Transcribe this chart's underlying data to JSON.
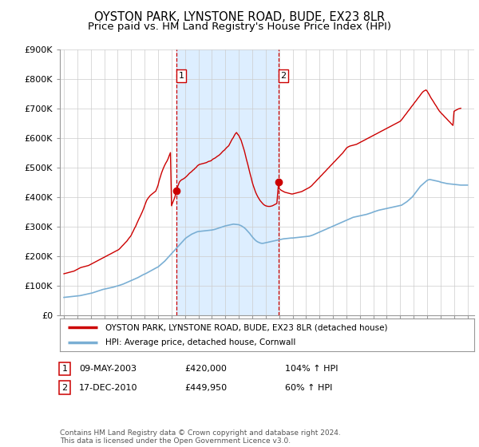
{
  "title": "OYSTON PARK, LYNSTONE ROAD, BUDE, EX23 8LR",
  "subtitle": "Price paid vs. HM Land Registry's House Price Index (HPI)",
  "title_fontsize": 10.5,
  "subtitle_fontsize": 9.5,
  "ylabel_ticks": [
    "£0",
    "£100K",
    "£200K",
    "£300K",
    "£400K",
    "£500K",
    "£600K",
    "£700K",
    "£800K",
    "£900K"
  ],
  "ytick_values": [
    0,
    100000,
    200000,
    300000,
    400000,
    500000,
    600000,
    700000,
    800000,
    900000
  ],
  "ylim": [
    0,
    900000
  ],
  "background_color": "#ffffff",
  "plot_bg_color": "#ffffff",
  "shade_color": "#ddeeff",
  "grid_color": "#cccccc",
  "sale1_x": 2003.36,
  "sale1_price": 420000,
  "sale1_label": "1",
  "sale2_x": 2010.96,
  "sale2_price": 449950,
  "sale2_label": "2",
  "vline_color": "#cc0000",
  "marker_color": "#cc0000",
  "hpi_line_color": "#7aafd4",
  "price_line_color": "#cc0000",
  "legend_label_price": "OYSTON PARK, LYNSTONE ROAD, BUDE, EX23 8LR (detached house)",
  "legend_label_hpi": "HPI: Average price, detached house, Cornwall",
  "footer_text": "Contains HM Land Registry data © Crown copyright and database right 2024.\nThis data is licensed under the Open Government Licence v3.0.",
  "table_rows": [
    {
      "num": "1",
      "date": "09-MAY-2003",
      "price": "£420,000",
      "hpi": "104% ↑ HPI"
    },
    {
      "num": "2",
      "date": "17-DEC-2010",
      "price": "£449,950",
      "hpi": "60% ↑ HPI"
    }
  ],
  "xmin": 1994.7,
  "xmax": 2025.5,
  "hpi_x": [
    1995.0,
    1995.1,
    1995.2,
    1995.3,
    1995.4,
    1995.5,
    1995.6,
    1995.7,
    1995.8,
    1995.9,
    1996.0,
    1996.1,
    1996.2,
    1996.3,
    1996.4,
    1996.5,
    1996.6,
    1996.7,
    1996.8,
    1996.9,
    1997.0,
    1997.1,
    1997.2,
    1997.3,
    1997.4,
    1997.5,
    1997.6,
    1997.7,
    1997.8,
    1997.9,
    1998.0,
    1998.1,
    1998.2,
    1998.3,
    1998.4,
    1998.5,
    1998.6,
    1998.7,
    1998.8,
    1998.9,
    1999.0,
    1999.1,
    1999.2,
    1999.3,
    1999.4,
    1999.5,
    1999.6,
    1999.7,
    1999.8,
    1999.9,
    2000.0,
    2000.1,
    2000.2,
    2000.3,
    2000.4,
    2000.5,
    2000.6,
    2000.7,
    2000.8,
    2000.9,
    2001.0,
    2001.1,
    2001.2,
    2001.3,
    2001.4,
    2001.5,
    2001.6,
    2001.7,
    2001.8,
    2001.9,
    2002.0,
    2002.1,
    2002.2,
    2002.3,
    2002.4,
    2002.5,
    2002.6,
    2002.7,
    2002.8,
    2002.9,
    2003.0,
    2003.1,
    2003.2,
    2003.3,
    2003.4,
    2003.5,
    2003.6,
    2003.7,
    2003.8,
    2003.9,
    2004.0,
    2004.1,
    2004.2,
    2004.3,
    2004.4,
    2004.5,
    2004.6,
    2004.7,
    2004.8,
    2004.9,
    2005.0,
    2005.1,
    2005.2,
    2005.3,
    2005.4,
    2005.5,
    2005.6,
    2005.7,
    2005.8,
    2005.9,
    2006.0,
    2006.1,
    2006.2,
    2006.3,
    2006.4,
    2006.5,
    2006.6,
    2006.7,
    2006.8,
    2006.9,
    2007.0,
    2007.1,
    2007.2,
    2007.3,
    2007.4,
    2007.5,
    2007.6,
    2007.7,
    2007.8,
    2007.9,
    2008.0,
    2008.1,
    2008.2,
    2008.3,
    2008.4,
    2008.5,
    2008.6,
    2008.7,
    2008.8,
    2008.9,
    2009.0,
    2009.1,
    2009.2,
    2009.3,
    2009.4,
    2009.5,
    2009.6,
    2009.7,
    2009.8,
    2009.9,
    2010.0,
    2010.1,
    2010.2,
    2010.3,
    2010.4,
    2010.5,
    2010.6,
    2010.7,
    2010.8,
    2010.9,
    2011.0,
    2011.1,
    2011.2,
    2011.3,
    2011.4,
    2011.5,
    2011.6,
    2011.7,
    2011.8,
    2011.9,
    2012.0,
    2012.1,
    2012.2,
    2012.3,
    2012.4,
    2012.5,
    2012.6,
    2012.7,
    2012.8,
    2012.9,
    2013.0,
    2013.1,
    2013.2,
    2013.3,
    2013.4,
    2013.5,
    2013.6,
    2013.7,
    2013.8,
    2013.9,
    2014.0,
    2014.1,
    2014.2,
    2014.3,
    2014.4,
    2014.5,
    2014.6,
    2014.7,
    2014.8,
    2014.9,
    2015.0,
    2015.1,
    2015.2,
    2015.3,
    2015.4,
    2015.5,
    2015.6,
    2015.7,
    2015.8,
    2015.9,
    2016.0,
    2016.1,
    2016.2,
    2016.3,
    2016.4,
    2016.5,
    2016.6,
    2016.7,
    2016.8,
    2016.9,
    2017.0,
    2017.1,
    2017.2,
    2017.3,
    2017.4,
    2017.5,
    2017.6,
    2017.7,
    2017.8,
    2017.9,
    2018.0,
    2018.1,
    2018.2,
    2018.3,
    2018.4,
    2018.5,
    2018.6,
    2018.7,
    2018.8,
    2018.9,
    2019.0,
    2019.1,
    2019.2,
    2019.3,
    2019.4,
    2019.5,
    2019.6,
    2019.7,
    2019.8,
    2019.9,
    2020.0,
    2020.1,
    2020.2,
    2020.3,
    2020.4,
    2020.5,
    2020.6,
    2020.7,
    2020.8,
    2020.9,
    2021.0,
    2021.1,
    2021.2,
    2021.3,
    2021.4,
    2021.5,
    2021.6,
    2021.7,
    2021.8,
    2021.9,
    2022.0,
    2022.1,
    2022.2,
    2022.3,
    2022.4,
    2022.5,
    2022.6,
    2022.7,
    2022.8,
    2022.9,
    2023.0,
    2023.1,
    2023.2,
    2023.3,
    2023.4,
    2023.5,
    2023.6,
    2023.7,
    2023.8,
    2023.9,
    2024.0,
    2024.1,
    2024.2,
    2024.3,
    2024.4,
    2024.5,
    2024.6,
    2024.7,
    2024.8,
    2024.9,
    2025.0
  ],
  "hpi_y": [
    60000,
    60500,
    61000,
    61500,
    62000,
    62500,
    63000,
    63500,
    64000,
    64500,
    65000,
    65500,
    66000,
    67000,
    68000,
    69000,
    70000,
    71000,
    72000,
    73000,
    74000,
    75000,
    76500,
    78000,
    79500,
    81000,
    82500,
    84000,
    85500,
    87000,
    88000,
    89000,
    90000,
    91000,
    92000,
    93000,
    94000,
    95000,
    96500,
    98000,
    99000,
    100500,
    102000,
    103500,
    105000,
    107000,
    109000,
    111000,
    113000,
    115000,
    117000,
    119000,
    121000,
    123000,
    125000,
    127000,
    129500,
    132000,
    134500,
    137000,
    139000,
    141000,
    143500,
    146000,
    148500,
    151000,
    153500,
    156000,
    158500,
    161000,
    163000,
    167000,
    171000,
    175000,
    179000,
    183000,
    188000,
    193000,
    198000,
    203000,
    208000,
    213000,
    218000,
    223000,
    228000,
    233000,
    238000,
    243000,
    248000,
    253000,
    258000,
    262000,
    265000,
    268000,
    271000,
    274000,
    276000,
    278000,
    280000,
    282000,
    283000,
    283500,
    284000,
    284500,
    285000,
    285500,
    286000,
    286500,
    287000,
    287500,
    288000,
    289000,
    290000,
    291500,
    293000,
    294500,
    296000,
    297500,
    299000,
    300500,
    302000,
    303000,
    304000,
    305000,
    306000,
    307000,
    308000,
    307500,
    307000,
    306500,
    306000,
    304000,
    302000,
    299000,
    296000,
    292000,
    287000,
    282000,
    277000,
    271000,
    265000,
    260000,
    255000,
    251000,
    248000,
    246000,
    244000,
    243000,
    243000,
    244000,
    245000,
    246000,
    247000,
    248000,
    249000,
    250000,
    251000,
    252000,
    253000,
    254000,
    255000,
    256000,
    257000,
    258000,
    258500,
    259000,
    259500,
    260000,
    260500,
    261000,
    261000,
    261500,
    262000,
    262500,
    263000,
    263500,
    264000,
    264500,
    265000,
    265500,
    266000,
    266500,
    267000,
    268000,
    269500,
    271000,
    273000,
    275000,
    277000,
    279000,
    281000,
    283000,
    285000,
    287000,
    289000,
    291000,
    293000,
    295000,
    297000,
    299000,
    301000,
    303000,
    305000,
    307000,
    309000,
    311000,
    313000,
    315000,
    317000,
    319000,
    321000,
    323000,
    325000,
    327000,
    329000,
    331000,
    332000,
    333000,
    334000,
    335000,
    336000,
    337000,
    338000,
    339000,
    340000,
    341000,
    342500,
    344000,
    345500,
    347000,
    349000,
    350500,
    352000,
    353500,
    355000,
    356000,
    357000,
    358000,
    359000,
    360000,
    361000,
    362000,
    363000,
    364000,
    365000,
    366000,
    367000,
    368000,
    369000,
    370000,
    371000,
    372000,
    375000,
    378000,
    381000,
    384000,
    388000,
    392000,
    396000,
    400000,
    406000,
    412000,
    418000,
    424000,
    430000,
    436000,
    440000,
    444000,
    448000,
    452000,
    456000,
    458000,
    459000,
    458000,
    457000,
    456000,
    455000,
    454000,
    453000,
    452000,
    450000,
    449000,
    448000,
    447000,
    446000,
    445000,
    444500,
    444000,
    443500,
    443000,
    442500,
    442000,
    441500,
    441000,
    440500,
    440000,
    440000,
    440000,
    440000,
    440000,
    440000
  ],
  "price_x": [
    1995.0,
    1995.08,
    1995.17,
    1995.25,
    1995.33,
    1995.42,
    1995.5,
    1995.58,
    1995.67,
    1995.75,
    1995.83,
    1995.92,
    1996.0,
    1996.08,
    1996.17,
    1996.25,
    1996.33,
    1996.42,
    1996.5,
    1996.58,
    1996.67,
    1996.75,
    1996.83,
    1996.92,
    1997.0,
    1997.08,
    1997.17,
    1997.25,
    1997.33,
    1997.42,
    1997.5,
    1997.58,
    1997.67,
    1997.75,
    1997.83,
    1997.92,
    1998.0,
    1998.08,
    1998.17,
    1998.25,
    1998.33,
    1998.42,
    1998.5,
    1998.58,
    1998.67,
    1998.75,
    1998.83,
    1998.92,
    1999.0,
    1999.08,
    1999.17,
    1999.25,
    1999.33,
    1999.42,
    1999.5,
    1999.58,
    1999.67,
    1999.75,
    1999.83,
    1999.92,
    2000.0,
    2000.08,
    2000.17,
    2000.25,
    2000.33,
    2000.42,
    2000.5,
    2000.58,
    2000.67,
    2000.75,
    2000.83,
    2000.92,
    2001.0,
    2001.08,
    2001.17,
    2001.25,
    2001.33,
    2001.42,
    2001.5,
    2001.58,
    2001.67,
    2001.75,
    2001.83,
    2001.92,
    2002.0,
    2002.08,
    2002.17,
    2002.25,
    2002.33,
    2002.42,
    2002.5,
    2002.58,
    2002.67,
    2002.75,
    2002.83,
    2002.92,
    2003.0,
    2003.08,
    2003.17,
    2003.25,
    2003.36,
    2003.42,
    2003.5,
    2003.58,
    2003.67,
    2003.75,
    2003.83,
    2003.92,
    2004.0,
    2004.08,
    2004.17,
    2004.25,
    2004.33,
    2004.42,
    2004.5,
    2004.58,
    2004.67,
    2004.75,
    2004.83,
    2004.92,
    2005.0,
    2005.08,
    2005.17,
    2005.25,
    2005.33,
    2005.42,
    2005.5,
    2005.58,
    2005.67,
    2005.75,
    2005.83,
    2005.92,
    2006.0,
    2006.08,
    2006.17,
    2006.25,
    2006.33,
    2006.42,
    2006.5,
    2006.58,
    2006.67,
    2006.75,
    2006.83,
    2006.92,
    2007.0,
    2007.08,
    2007.17,
    2007.25,
    2007.33,
    2007.42,
    2007.5,
    2007.58,
    2007.67,
    2007.75,
    2007.83,
    2007.92,
    2008.0,
    2008.08,
    2008.17,
    2008.25,
    2008.33,
    2008.42,
    2008.5,
    2008.58,
    2008.67,
    2008.75,
    2008.83,
    2008.92,
    2009.0,
    2009.08,
    2009.17,
    2009.25,
    2009.33,
    2009.42,
    2009.5,
    2009.58,
    2009.67,
    2009.75,
    2009.83,
    2009.92,
    2010.0,
    2010.08,
    2010.17,
    2010.25,
    2010.33,
    2010.42,
    2010.5,
    2010.58,
    2010.67,
    2010.75,
    2010.83,
    2010.96,
    2011.0,
    2011.08,
    2011.17,
    2011.25,
    2011.33,
    2011.42,
    2011.5,
    2011.58,
    2011.67,
    2011.75,
    2011.83,
    2011.92,
    2012.0,
    2012.08,
    2012.17,
    2012.25,
    2012.33,
    2012.42,
    2012.5,
    2012.58,
    2012.67,
    2012.75,
    2012.83,
    2012.92,
    2013.0,
    2013.08,
    2013.17,
    2013.25,
    2013.33,
    2013.42,
    2013.5,
    2013.58,
    2013.67,
    2013.75,
    2013.83,
    2013.92,
    2014.0,
    2014.08,
    2014.17,
    2014.25,
    2014.33,
    2014.42,
    2014.5,
    2014.58,
    2014.67,
    2014.75,
    2014.83,
    2014.92,
    2015.0,
    2015.08,
    2015.17,
    2015.25,
    2015.33,
    2015.42,
    2015.5,
    2015.58,
    2015.67,
    2015.75,
    2015.83,
    2015.92,
    2016.0,
    2016.08,
    2016.17,
    2016.25,
    2016.33,
    2016.42,
    2016.5,
    2016.58,
    2016.67,
    2016.75,
    2016.83,
    2016.92,
    2017.0,
    2017.08,
    2017.17,
    2017.25,
    2017.33,
    2017.42,
    2017.5,
    2017.58,
    2017.67,
    2017.75,
    2017.83,
    2017.92,
    2018.0,
    2018.08,
    2018.17,
    2018.25,
    2018.33,
    2018.42,
    2018.5,
    2018.58,
    2018.67,
    2018.75,
    2018.83,
    2018.92,
    2019.0,
    2019.08,
    2019.17,
    2019.25,
    2019.33,
    2019.42,
    2019.5,
    2019.58,
    2019.67,
    2019.75,
    2019.83,
    2019.92,
    2020.0,
    2020.08,
    2020.17,
    2020.25,
    2020.33,
    2020.42,
    2020.5,
    2020.58,
    2020.67,
    2020.75,
    2020.83,
    2020.92,
    2021.0,
    2021.08,
    2021.17,
    2021.25,
    2021.33,
    2021.42,
    2021.5,
    2021.58,
    2021.67,
    2021.75,
    2021.83,
    2021.92,
    2022.0,
    2022.08,
    2022.17,
    2022.25,
    2022.33,
    2022.42,
    2022.5,
    2022.58,
    2022.67,
    2022.75,
    2022.83,
    2022.92,
    2023.0,
    2023.08,
    2023.17,
    2023.25,
    2023.33,
    2023.42,
    2023.5,
    2023.58,
    2023.67,
    2023.75,
    2023.83,
    2023.92,
    2024.0,
    2024.08,
    2024.17,
    2024.25,
    2024.33,
    2024.5
  ],
  "price_y": [
    140000,
    141000,
    142000,
    143000,
    144000,
    145000,
    146000,
    147000,
    148000,
    149000,
    151000,
    153000,
    155000,
    157000,
    159000,
    161000,
    162000,
    163000,
    164000,
    165000,
    166000,
    167000,
    168000,
    170000,
    172000,
    174000,
    176000,
    178000,
    180000,
    182000,
    184000,
    186000,
    188000,
    190000,
    192000,
    194000,
    196000,
    198000,
    200000,
    202000,
    204000,
    206000,
    208000,
    210000,
    212000,
    214000,
    216000,
    218000,
    220000,
    222000,
    226000,
    230000,
    234000,
    238000,
    242000,
    246000,
    250000,
    255000,
    260000,
    265000,
    270000,
    278000,
    286000,
    294000,
    300000,
    310000,
    318000,
    326000,
    334000,
    342000,
    350000,
    360000,
    370000,
    380000,
    390000,
    395000,
    400000,
    405000,
    408000,
    411000,
    414000,
    417000,
    420000,
    430000,
    440000,
    455000,
    468000,
    480000,
    490000,
    500000,
    508000,
    515000,
    522000,
    530000,
    540000,
    550000,
    370000,
    380000,
    390000,
    400000,
    420000,
    430000,
    440000,
    450000,
    455000,
    458000,
    460000,
    462000,
    465000,
    468000,
    472000,
    476000,
    480000,
    483000,
    486000,
    490000,
    493000,
    497000,
    500000,
    505000,
    508000,
    510000,
    511000,
    512000,
    513000,
    514000,
    515000,
    516000,
    518000,
    520000,
    521000,
    522000,
    525000,
    528000,
    530000,
    532000,
    535000,
    538000,
    540000,
    543000,
    547000,
    551000,
    555000,
    558000,
    562000,
    566000,
    570000,
    573000,
    580000,
    588000,
    595000,
    600000,
    608000,
    614000,
    618000,
    612000,
    608000,
    600000,
    592000,
    580000,
    568000,
    555000,
    540000,
    525000,
    510000,
    495000,
    480000,
    465000,
    450000,
    438000,
    426000,
    416000,
    408000,
    400000,
    394000,
    388000,
    383000,
    379000,
    375000,
    372000,
    370000,
    369000,
    368000,
    368000,
    368000,
    369000,
    370000,
    372000,
    374000,
    376000,
    378000,
    449950,
    428000,
    425000,
    422000,
    420000,
    418000,
    416000,
    415000,
    414000,
    413000,
    412000,
    411000,
    410000,
    410000,
    411000,
    412000,
    413000,
    414000,
    415000,
    416000,
    417000,
    418000,
    420000,
    422000,
    424000,
    426000,
    428000,
    430000,
    432000,
    435000,
    438000,
    442000,
    446000,
    450000,
    454000,
    458000,
    462000,
    466000,
    470000,
    474000,
    478000,
    482000,
    486000,
    490000,
    494000,
    498000,
    502000,
    506000,
    510000,
    514000,
    518000,
    522000,
    526000,
    530000,
    534000,
    538000,
    542000,
    546000,
    550000,
    555000,
    560000,
    565000,
    568000,
    570000,
    572000,
    573000,
    574000,
    575000,
    576000,
    577000,
    578000,
    580000,
    582000,
    584000,
    586000,
    588000,
    590000,
    592000,
    594000,
    596000,
    598000,
    600000,
    602000,
    604000,
    606000,
    608000,
    610000,
    612000,
    614000,
    616000,
    618000,
    620000,
    622000,
    624000,
    626000,
    628000,
    630000,
    632000,
    634000,
    636000,
    638000,
    640000,
    642000,
    644000,
    646000,
    648000,
    650000,
    652000,
    654000,
    656000,
    660000,
    665000,
    670000,
    675000,
    680000,
    685000,
    690000,
    695000,
    700000,
    705000,
    710000,
    715000,
    720000,
    725000,
    730000,
    735000,
    740000,
    745000,
    750000,
    755000,
    758000,
    760000,
    762000,
    758000,
    752000,
    745000,
    738000,
    732000,
    726000,
    720000,
    714000,
    708000,
    702000,
    696000,
    690000,
    686000,
    682000,
    678000,
    674000,
    670000,
    666000,
    662000,
    658000,
    654000,
    650000,
    646000,
    642000,
    690000,
    692000,
    694000,
    696000,
    698000,
    700000
  ]
}
